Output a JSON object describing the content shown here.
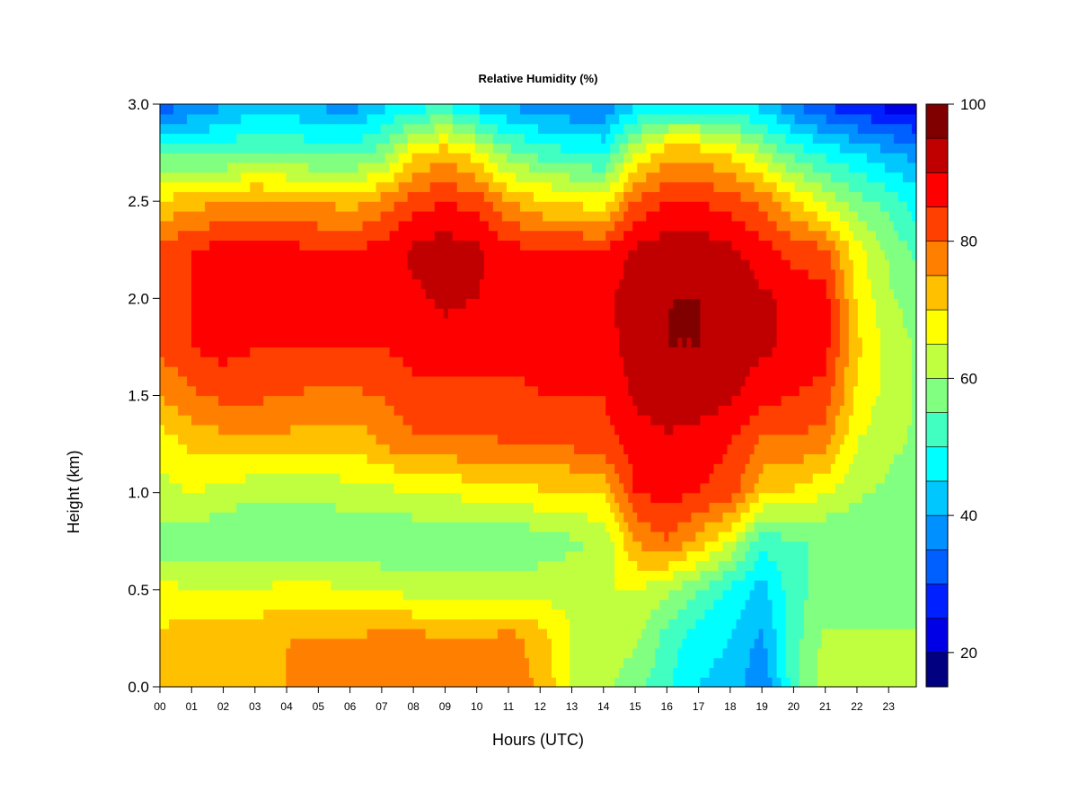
{
  "chart_data": {
    "type": "heatmap",
    "title": "Relative Humidity (%)",
    "xlabel": "Hours (UTC)",
    "ylabel": "Height (km)",
    "x_ticks": [
      "00",
      "01",
      "02",
      "03",
      "04",
      "05",
      "06",
      "07",
      "08",
      "09",
      "10",
      "11",
      "12",
      "13",
      "14",
      "15",
      "16",
      "17",
      "18",
      "19",
      "20",
      "21",
      "22",
      "23"
    ],
    "xlim": [
      0,
      24
    ],
    "y_ticks": [
      "0.0",
      "0.5",
      "1.0",
      "1.5",
      "2.0",
      "2.5",
      "3.0"
    ],
    "ylim": [
      0.0,
      3.0
    ],
    "colorbar": {
      "ticks": [
        "20",
        "40",
        "60",
        "80",
        "100"
      ],
      "range": [
        15,
        100
      ],
      "levels": [
        15,
        20,
        25,
        30,
        35,
        40,
        45,
        50,
        55,
        60,
        65,
        70,
        75,
        80,
        85,
        90,
        95,
        100
      ],
      "colors": [
        "#000080",
        "#0000b4",
        "#0000e6",
        "#0020ff",
        "#0060ff",
        "#0090ff",
        "#00c8ff",
        "#00ffff",
        "#40ffc0",
        "#80ff80",
        "#c0ff40",
        "#ffff00",
        "#ffc000",
        "#ff8000",
        "#ff4000",
        "#ff0000",
        "#c00000",
        "#800000"
      ]
    },
    "grid": false,
    "x": [
      0,
      1,
      2,
      3,
      4,
      5,
      6,
      7,
      8,
      9,
      10,
      11,
      12,
      13,
      14,
      15,
      16,
      17,
      18,
      19,
      20,
      21,
      22,
      23,
      24
    ],
    "y": [
      0.0,
      0.25,
      0.5,
      0.75,
      1.0,
      1.25,
      1.5,
      1.75,
      2.0,
      2.25,
      2.5,
      2.75,
      3.0
    ],
    "z": [
      [
        78,
        76,
        77,
        78,
        80,
        80,
        82,
        83,
        82,
        82,
        82,
        83,
        79,
        70,
        66,
        62,
        56,
        50,
        48,
        40,
        58,
        68,
        68,
        68,
        68
      ],
      [
        76,
        78,
        78,
        79,
        80,
        80,
        80,
        82,
        82,
        80,
        80,
        82,
        78,
        70,
        68,
        66,
        58,
        52,
        50,
        44,
        58,
        66,
        66,
        66,
        66
      ],
      [
        72,
        70,
        70,
        70,
        72,
        72,
        70,
        70,
        68,
        68,
        68,
        68,
        68,
        68,
        70,
        70,
        66,
        60,
        54,
        48,
        58,
        62,
        62,
        62,
        62
      ],
      [
        62,
        62,
        60,
        60,
        60,
        60,
        60,
        60,
        60,
        60,
        60,
        60,
        62,
        64,
        66,
        80,
        85,
        78,
        70,
        56,
        60,
        60,
        60,
        60,
        60
      ],
      [
        68,
        70,
        68,
        66,
        66,
        66,
        68,
        68,
        70,
        70,
        72,
        72,
        74,
        74,
        76,
        90,
        92,
        90,
        88,
        76,
        74,
        70,
        66,
        64,
        62
      ],
      [
        72,
        76,
        78,
        78,
        78,
        76,
        76,
        80,
        84,
        84,
        84,
        85,
        85,
        86,
        88,
        92,
        94,
        92,
        90,
        84,
        84,
        82,
        70,
        66,
        64
      ],
      [
        80,
        84,
        86,
        86,
        85,
        84,
        84,
        85,
        88,
        88,
        88,
        88,
        90,
        90,
        90,
        96,
        98,
        98,
        96,
        92,
        90,
        88,
        74,
        68,
        64
      ],
      [
        86,
        90,
        92,
        90,
        90,
        90,
        90,
        90,
        92,
        93,
        92,
        92,
        92,
        92,
        92,
        98,
        100,
        100,
        98,
        96,
        94,
        92,
        76,
        68,
        64
      ],
      [
        88,
        90,
        92,
        92,
        92,
        92,
        92,
        92,
        94,
        96,
        95,
        94,
        94,
        94,
        94,
        98,
        100,
        100,
        100,
        96,
        94,
        92,
        74,
        66,
        62
      ],
      [
        86,
        90,
        92,
        92,
        92,
        90,
        90,
        92,
        96,
        98,
        96,
        92,
        90,
        90,
        90,
        96,
        98,
        98,
        96,
        92,
        88,
        86,
        72,
        64,
        58
      ],
      [
        76,
        78,
        80,
        82,
        80,
        80,
        78,
        82,
        88,
        90,
        88,
        80,
        76,
        74,
        72,
        86,
        90,
        90,
        88,
        84,
        76,
        68,
        62,
        58,
        52
      ],
      [
        60,
        58,
        58,
        60,
        60,
        58,
        58,
        62,
        74,
        78,
        72,
        62,
        58,
        56,
        54,
        70,
        78,
        78,
        74,
        66,
        58,
        54,
        50,
        46,
        42
      ],
      [
        36,
        40,
        44,
        48,
        48,
        44,
        42,
        48,
        52,
        54,
        48,
        44,
        42,
        40,
        40,
        48,
        52,
        52,
        50,
        48,
        40,
        34,
        30,
        28,
        26
      ]
    ]
  }
}
